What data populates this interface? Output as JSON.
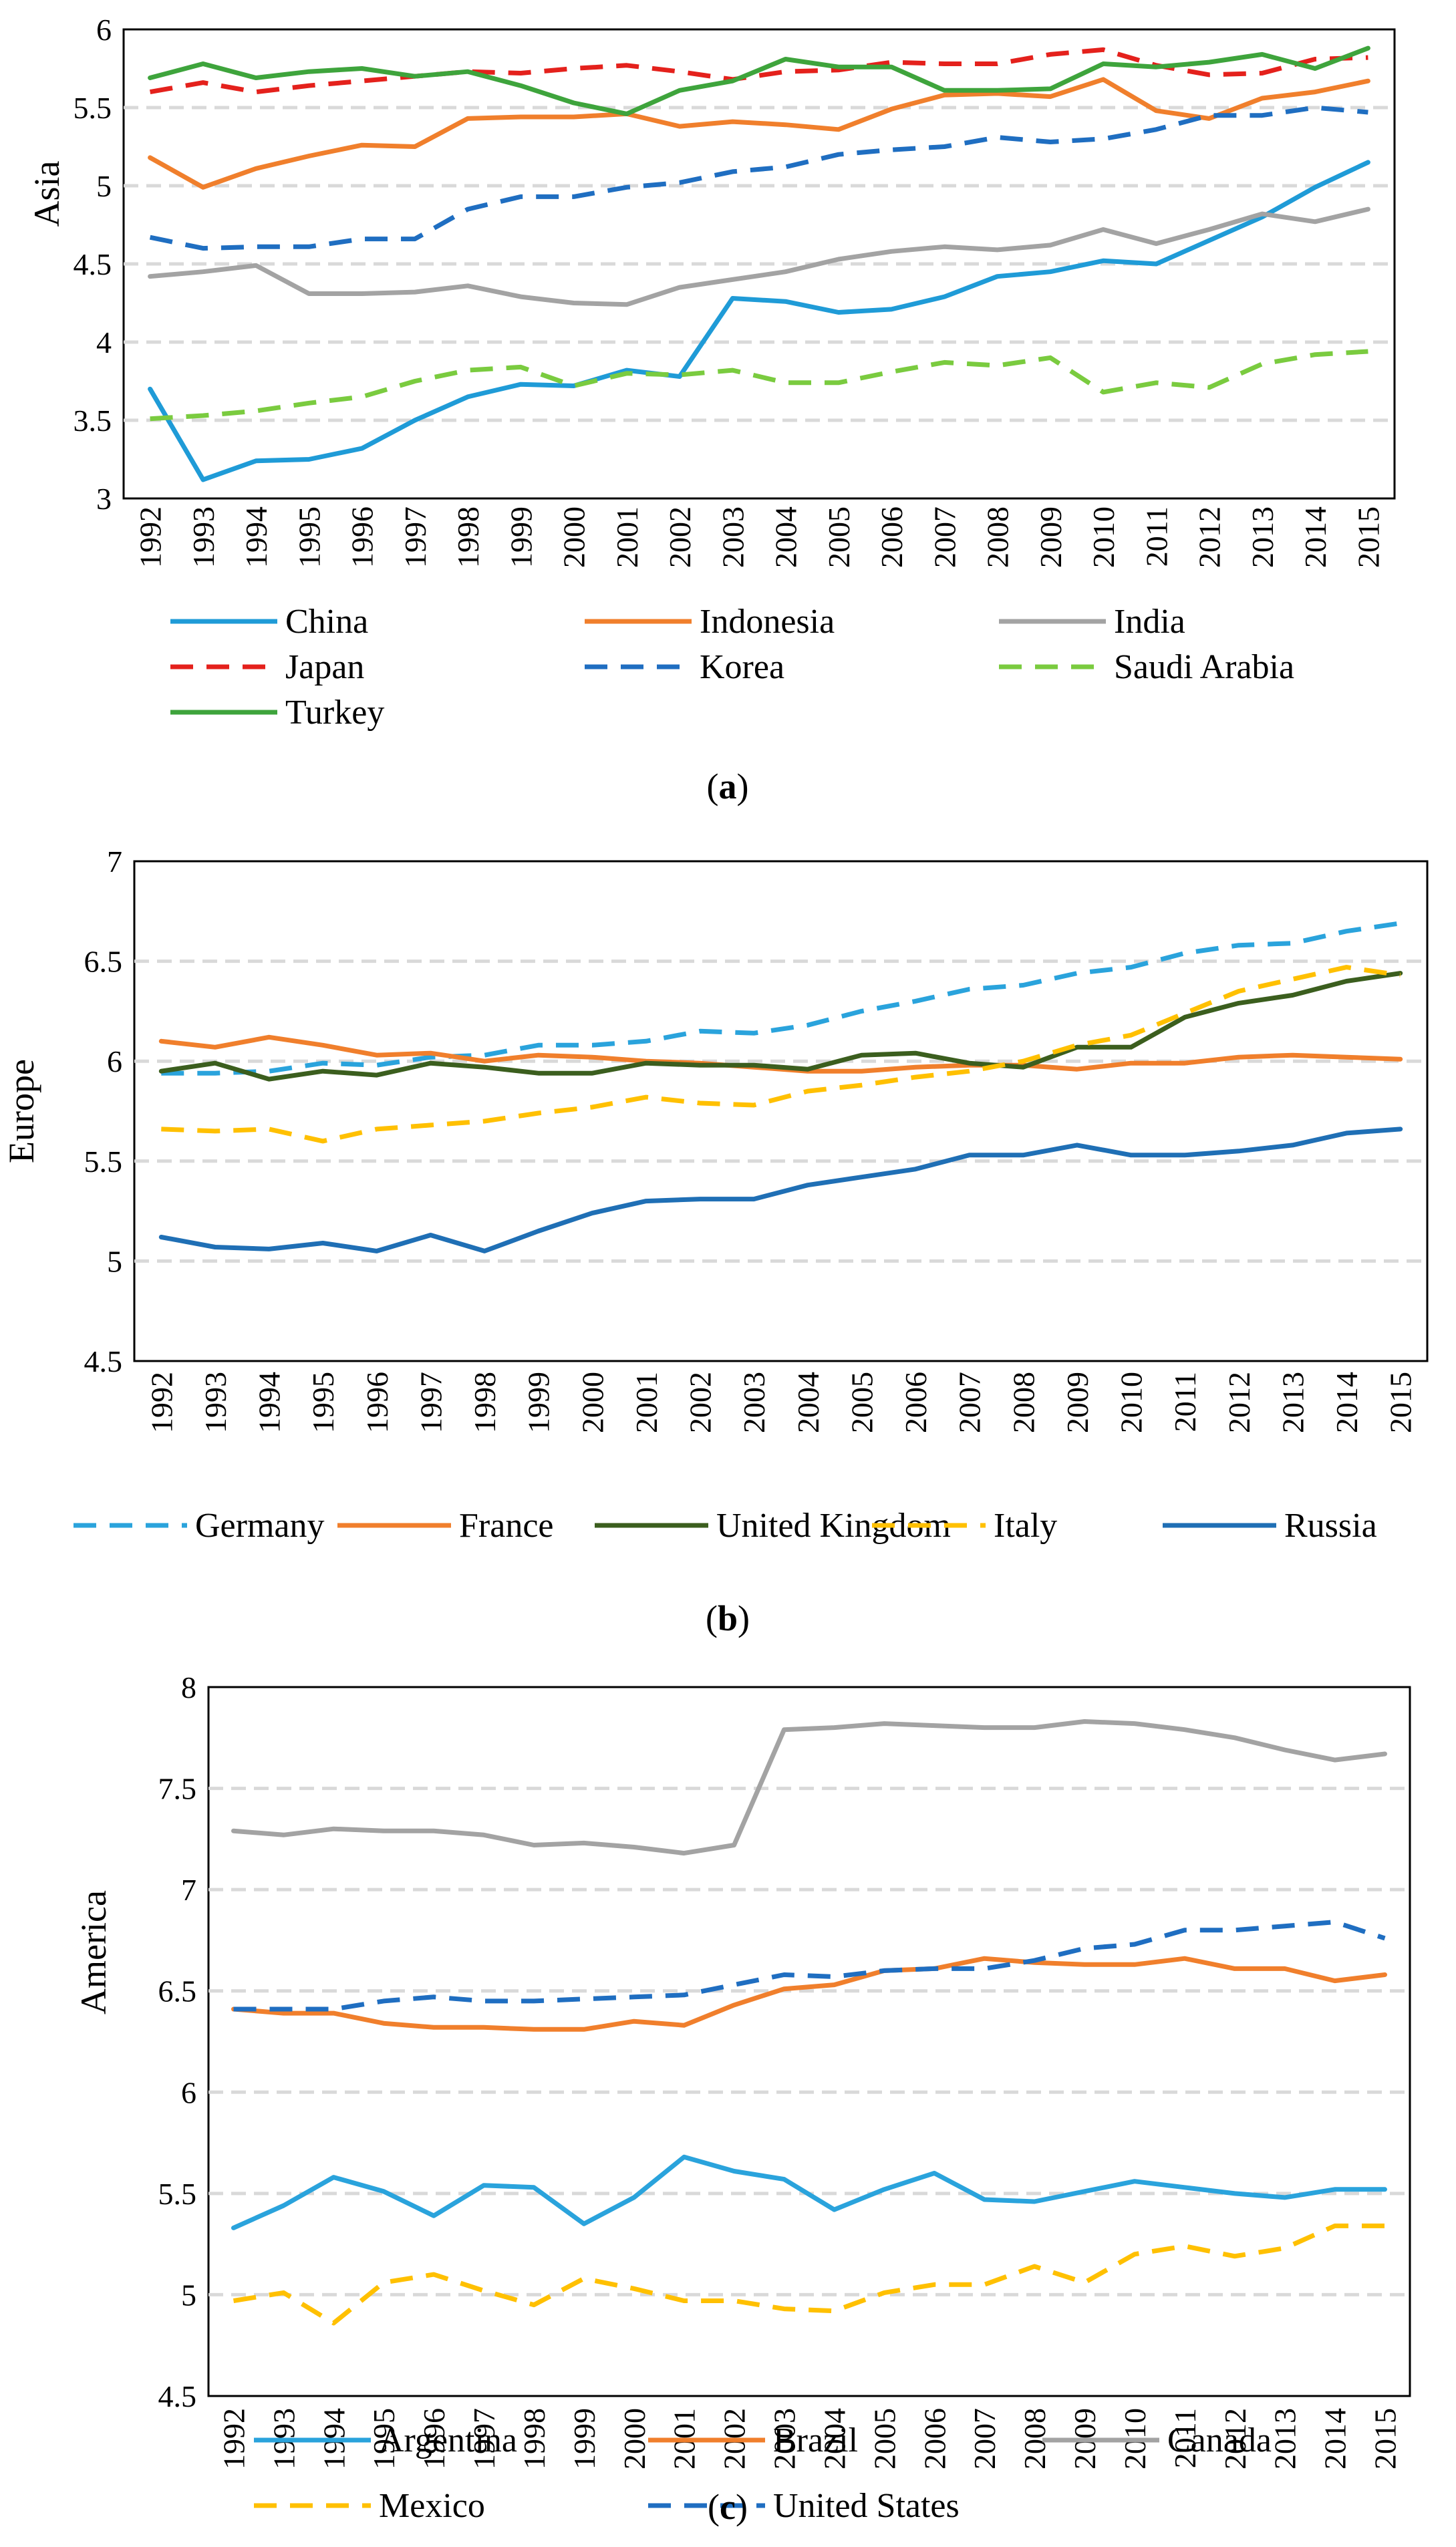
{
  "chart_data": [
    {
      "id": "a",
      "type": "line",
      "caption_label": "a",
      "ylabel": "Asia",
      "xlabel": "",
      "ylim": [
        3,
        6
      ],
      "ytick_step": 0.5,
      "yticks": [
        "3",
        "3.5",
        "4",
        "4.5",
        "5",
        "5.5",
        "6"
      ],
      "grid": true,
      "categories": [
        "1992",
        "1993",
        "1994",
        "1995",
        "1996",
        "1997",
        "1998",
        "1999",
        "2000",
        "2001",
        "2002",
        "2003",
        "2004",
        "2005",
        "2006",
        "2007",
        "2008",
        "2009",
        "2010",
        "2011",
        "2012",
        "2013",
        "2014",
        "2015"
      ],
      "legend_columns": 3,
      "series": [
        {
          "name": "China",
          "color": "#1f9bd7",
          "dash": "solid",
          "values": [
            3.7,
            3.12,
            3.24,
            3.25,
            3.32,
            3.5,
            3.65,
            3.73,
            3.72,
            3.82,
            3.78,
            4.28,
            4.26,
            4.19,
            4.21,
            4.29,
            4.42,
            4.45,
            4.52,
            4.5,
            4.65,
            4.8,
            4.99,
            5.15
          ]
        },
        {
          "name": "Indonesia",
          "color": "#f07f2c",
          "dash": "solid",
          "values": [
            5.18,
            4.99,
            5.11,
            5.19,
            5.26,
            5.25,
            5.43,
            5.44,
            5.44,
            5.46,
            5.38,
            5.41,
            5.39,
            5.36,
            5.49,
            5.58,
            5.59,
            5.57,
            5.68,
            5.48,
            5.43,
            5.56,
            5.6,
            5.67
          ]
        },
        {
          "name": "India",
          "color": "#a3a3a3",
          "dash": "solid",
          "values": [
            4.42,
            4.45,
            4.49,
            4.31,
            4.31,
            4.32,
            4.36,
            4.29,
            4.25,
            4.24,
            4.35,
            4.4,
            4.45,
            4.53,
            4.58,
            4.61,
            4.59,
            4.62,
            4.72,
            4.63,
            4.72,
            4.82,
            4.77,
            4.85
          ]
        },
        {
          "name": "Japan",
          "color": "#e4211c",
          "dash": "dashed",
          "values": [
            5.6,
            5.66,
            5.6,
            5.64,
            5.67,
            5.7,
            5.73,
            5.72,
            5.75,
            5.77,
            5.73,
            5.68,
            5.73,
            5.74,
            5.79,
            5.78,
            5.78,
            5.84,
            5.87,
            5.77,
            5.71,
            5.72,
            5.81,
            5.82
          ]
        },
        {
          "name": "Korea",
          "color": "#1f6ec1",
          "dash": "dashed",
          "values": [
            4.67,
            4.6,
            4.61,
            4.61,
            4.66,
            4.66,
            4.85,
            4.93,
            4.93,
            4.99,
            5.02,
            5.09,
            5.12,
            5.2,
            5.23,
            5.25,
            5.31,
            5.28,
            5.3,
            5.36,
            5.45,
            5.45,
            5.5,
            5.47
          ]
        },
        {
          "name": "Saudi Arabia",
          "color": "#7acb3f",
          "dash": "dashed",
          "values": [
            3.51,
            3.53,
            3.56,
            3.61,
            3.65,
            3.75,
            3.82,
            3.84,
            3.72,
            3.8,
            3.79,
            3.82,
            3.74,
            3.74,
            3.81,
            3.87,
            3.85,
            3.9,
            3.68,
            3.74,
            3.71,
            3.86,
            3.92,
            3.94
          ]
        },
        {
          "name": "Turkey",
          "color": "#3ea43c",
          "dash": "solid",
          "values": [
            5.69,
            5.78,
            5.69,
            5.73,
            5.75,
            5.7,
            5.73,
            5.64,
            5.53,
            5.46,
            5.61,
            5.67,
            5.81,
            5.76,
            5.76,
            5.61,
            5.61,
            5.62,
            5.78,
            5.76,
            5.79,
            5.84,
            5.75,
            5.88
          ]
        }
      ]
    },
    {
      "id": "b",
      "type": "line",
      "caption_label": "b",
      "ylabel": "Europe",
      "xlabel": "",
      "ylim": [
        4.5,
        7
      ],
      "ytick_step": 0.5,
      "yticks": [
        "4.5",
        "5",
        "5.5",
        "6",
        "6.5",
        "7"
      ],
      "grid": true,
      "categories": [
        "1992",
        "1993",
        "1994",
        "1995",
        "1996",
        "1997",
        "1998",
        "1999",
        "2000",
        "2001",
        "2002",
        "2003",
        "2004",
        "2005",
        "2006",
        "2007",
        "2008",
        "2009",
        "2010",
        "2011",
        "2012",
        "2013",
        "2014",
        "2015"
      ],
      "legend_columns": 5,
      "series": [
        {
          "name": "Germany",
          "color": "#2aa3dc",
          "dash": "dashed",
          "values": [
            5.94,
            5.94,
            5.95,
            5.99,
            5.98,
            6.02,
            6.03,
            6.08,
            6.08,
            6.1,
            6.15,
            6.14,
            6.18,
            6.25,
            6.3,
            6.36,
            6.38,
            6.44,
            6.47,
            6.54,
            6.58,
            6.59,
            6.65,
            6.69
          ]
        },
        {
          "name": "France",
          "color": "#f07f2c",
          "dash": "solid",
          "values": [
            6.1,
            6.07,
            6.12,
            6.08,
            6.03,
            6.04,
            6.0,
            6.03,
            6.02,
            6.0,
            5.99,
            5.97,
            5.95,
            5.95,
            5.97,
            5.98,
            5.98,
            5.96,
            5.99,
            5.99,
            6.02,
            6.03,
            6.02,
            6.01
          ]
        },
        {
          "name": "United Kingdom",
          "color": "#3b5e1e",
          "dash": "solid",
          "values": [
            5.95,
            5.99,
            5.91,
            5.95,
            5.93,
            5.99,
            5.97,
            5.94,
            5.94,
            5.99,
            5.98,
            5.98,
            5.96,
            6.03,
            6.04,
            5.99,
            5.97,
            6.07,
            6.07,
            6.22,
            6.29,
            6.33,
            6.4,
            6.44
          ]
        },
        {
          "name": "Italy",
          "color": "#ffc000",
          "dash": "dashed",
          "values": [
            5.66,
            5.65,
            5.66,
            5.6,
            5.66,
            5.68,
            5.7,
            5.74,
            5.77,
            5.82,
            5.79,
            5.78,
            5.85,
            5.88,
            5.92,
            5.95,
            6.0,
            6.08,
            6.13,
            6.24,
            6.35,
            6.41,
            6.47,
            6.43
          ]
        },
        {
          "name": "Russia",
          "color": "#1f6fb5",
          "dash": "solid",
          "values": [
            5.12,
            5.07,
            5.06,
            5.09,
            5.05,
            5.13,
            5.05,
            5.15,
            5.24,
            5.3,
            5.31,
            5.31,
            5.38,
            5.42,
            5.46,
            5.53,
            5.53,
            5.58,
            5.53,
            5.53,
            5.55,
            5.58,
            5.64,
            5.66
          ]
        }
      ]
    },
    {
      "id": "c",
      "type": "line",
      "caption_label": "c",
      "ylabel": "America",
      "xlabel": "",
      "ylim": [
        4.5,
        8
      ],
      "ytick_step": 0.5,
      "yticks": [
        "4.5",
        "5",
        "5.5",
        "6",
        "6.5",
        "7",
        "7.5",
        "8"
      ],
      "grid": true,
      "categories": [
        "1992",
        "1993",
        "1994",
        "1995",
        "1996",
        "1997",
        "1998",
        "1999",
        "2000",
        "2001",
        "2002",
        "2003",
        "2004",
        "2005",
        "2006",
        "2007",
        "2008",
        "2009",
        "2010",
        "2011",
        "2012",
        "2013",
        "2014",
        "2015"
      ],
      "legend_columns": 3,
      "series": [
        {
          "name": "Argentina",
          "color": "#2aa3dc",
          "dash": "solid",
          "values": [
            5.33,
            5.44,
            5.58,
            5.51,
            5.39,
            5.54,
            5.53,
            5.35,
            5.48,
            5.68,
            5.61,
            5.57,
            5.42,
            5.52,
            5.6,
            5.47,
            5.46,
            5.51,
            5.56,
            5.53,
            5.5,
            5.48,
            5.52,
            5.52
          ]
        },
        {
          "name": "Brazil",
          "color": "#f07f2c",
          "dash": "solid",
          "values": [
            6.41,
            6.39,
            6.39,
            6.34,
            6.32,
            6.32,
            6.31,
            6.31,
            6.35,
            6.33,
            6.43,
            6.51,
            6.53,
            6.6,
            6.61,
            6.66,
            6.64,
            6.63,
            6.63,
            6.66,
            6.61,
            6.61,
            6.55,
            6.58
          ]
        },
        {
          "name": "Canada",
          "color": "#a3a3a3",
          "dash": "solid",
          "values": [
            7.29,
            7.27,
            7.3,
            7.29,
            7.29,
            7.27,
            7.22,
            7.23,
            7.21,
            7.18,
            7.22,
            7.79,
            7.8,
            7.82,
            7.81,
            7.8,
            7.8,
            7.83,
            7.82,
            7.79,
            7.75,
            7.69,
            7.64,
            7.67
          ]
        },
        {
          "name": "Mexico",
          "color": "#ffc000",
          "dash": "dashed",
          "values": [
            4.97,
            5.01,
            4.86,
            5.06,
            5.1,
            5.02,
            4.95,
            5.08,
            5.03,
            4.97,
            4.97,
            4.93,
            4.92,
            5.01,
            5.05,
            5.05,
            5.14,
            5.06,
            5.2,
            5.24,
            5.19,
            5.23,
            5.34,
            5.34
          ]
        },
        {
          "name": "United States",
          "color": "#1f6ec1",
          "dash": "dashed",
          "values": [
            6.41,
            6.41,
            6.41,
            6.45,
            6.47,
            6.45,
            6.45,
            6.46,
            6.47,
            6.48,
            6.53,
            6.58,
            6.57,
            6.6,
            6.61,
            6.61,
            6.65,
            6.71,
            6.73,
            6.8,
            6.8,
            6.82,
            6.84,
            6.76
          ]
        }
      ]
    }
  ]
}
